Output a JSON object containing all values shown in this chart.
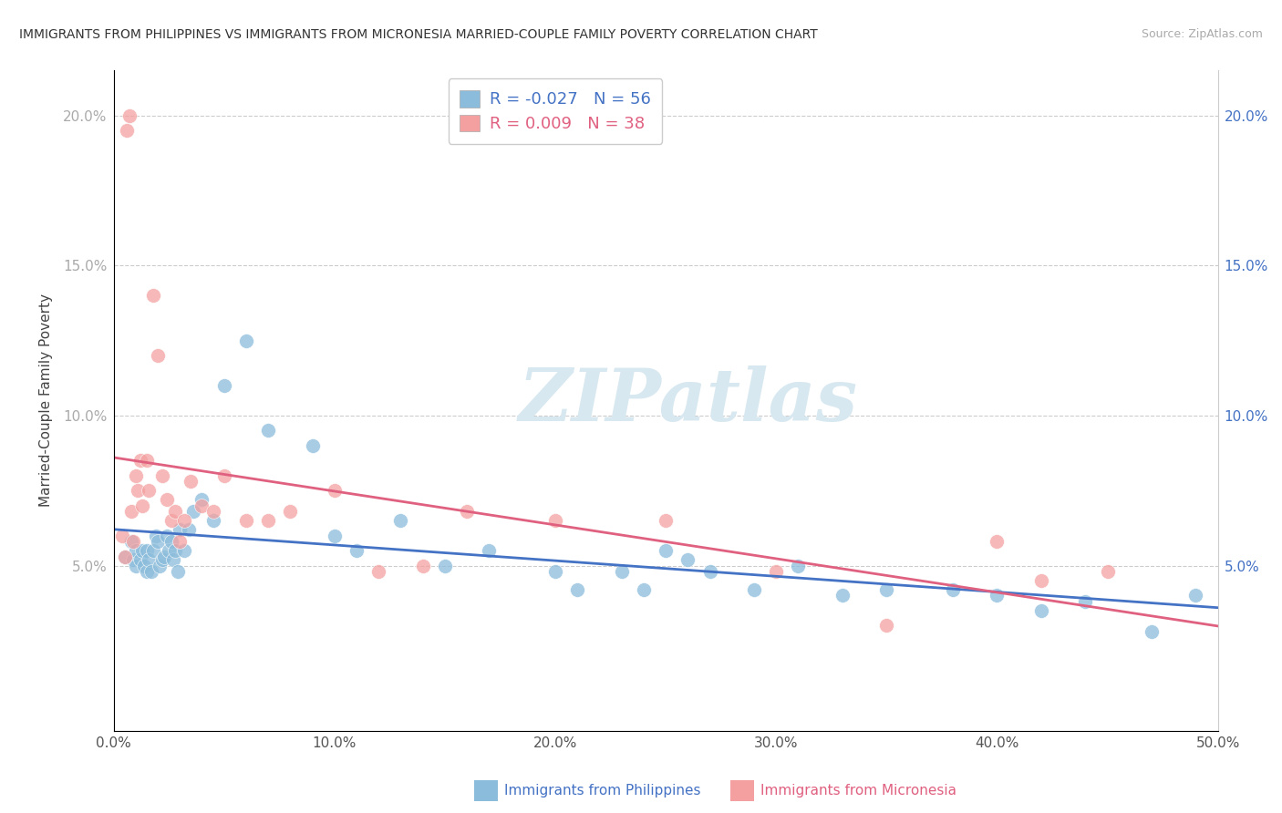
{
  "title": "IMMIGRANTS FROM PHILIPPINES VS IMMIGRANTS FROM MICRONESIA MARRIED-COUPLE FAMILY POVERTY CORRELATION CHART",
  "source": "Source: ZipAtlas.com",
  "ylabel": "Married-Couple Family Poverty",
  "xlabel_blue": "Immigrants from Philippines",
  "xlabel_pink": "Immigrants from Micronesia",
  "xlim": [
    0.0,
    0.5
  ],
  "ylim": [
    -0.005,
    0.215
  ],
  "xticks": [
    0.0,
    0.1,
    0.2,
    0.3,
    0.4,
    0.5
  ],
  "yticks": [
    0.05,
    0.1,
    0.15,
    0.2
  ],
  "ytick_labels": [
    "5.0%",
    "10.0%",
    "15.0%",
    "20.0%"
  ],
  "xtick_labels": [
    "0.0%",
    "10.0%",
    "20.0%",
    "30.0%",
    "40.0%",
    "50.0%"
  ],
  "legend_blue_R": "-0.027",
  "legend_blue_N": "56",
  "legend_pink_R": "0.009",
  "legend_pink_N": "38",
  "color_blue": "#8BBCDB",
  "color_pink": "#F4A0A0",
  "color_blue_line": "#4472C4",
  "color_pink_line": "#E06080",
  "watermark_color": "#d8e8f0",
  "blue_x": [
    0.005,
    0.008,
    0.009,
    0.01,
    0.01,
    0.012,
    0.013,
    0.014,
    0.015,
    0.015,
    0.016,
    0.017,
    0.018,
    0.019,
    0.02,
    0.021,
    0.022,
    0.023,
    0.024,
    0.025,
    0.026,
    0.027,
    0.028,
    0.029,
    0.03,
    0.032,
    0.034,
    0.036,
    0.04,
    0.045,
    0.05,
    0.06,
    0.07,
    0.09,
    0.1,
    0.11,
    0.13,
    0.15,
    0.17,
    0.2,
    0.21,
    0.23,
    0.24,
    0.25,
    0.26,
    0.27,
    0.29,
    0.31,
    0.33,
    0.35,
    0.38,
    0.4,
    0.42,
    0.44,
    0.47,
    0.49
  ],
  "blue_y": [
    0.053,
    0.058,
    0.052,
    0.05,
    0.055,
    0.052,
    0.055,
    0.05,
    0.048,
    0.055,
    0.052,
    0.048,
    0.055,
    0.06,
    0.058,
    0.05,
    0.052,
    0.053,
    0.06,
    0.055,
    0.058,
    0.052,
    0.055,
    0.048,
    0.062,
    0.055,
    0.062,
    0.068,
    0.072,
    0.065,
    0.11,
    0.125,
    0.095,
    0.09,
    0.06,
    0.055,
    0.065,
    0.05,
    0.055,
    0.048,
    0.042,
    0.048,
    0.042,
    0.055,
    0.052,
    0.048,
    0.042,
    0.05,
    0.04,
    0.042,
    0.042,
    0.04,
    0.035,
    0.038,
    0.028,
    0.04
  ],
  "pink_x": [
    0.004,
    0.005,
    0.006,
    0.007,
    0.008,
    0.009,
    0.01,
    0.011,
    0.012,
    0.013,
    0.015,
    0.016,
    0.018,
    0.02,
    0.022,
    0.024,
    0.026,
    0.028,
    0.03,
    0.032,
    0.035,
    0.04,
    0.045,
    0.05,
    0.06,
    0.07,
    0.08,
    0.1,
    0.12,
    0.14,
    0.16,
    0.2,
    0.25,
    0.3,
    0.35,
    0.4,
    0.42,
    0.45
  ],
  "pink_y": [
    0.06,
    0.053,
    0.195,
    0.2,
    0.068,
    0.058,
    0.08,
    0.075,
    0.085,
    0.07,
    0.085,
    0.075,
    0.14,
    0.12,
    0.08,
    0.072,
    0.065,
    0.068,
    0.058,
    0.065,
    0.078,
    0.07,
    0.068,
    0.08,
    0.065,
    0.065,
    0.068,
    0.075,
    0.048,
    0.05,
    0.068,
    0.065,
    0.065,
    0.048,
    0.03,
    0.058,
    0.045,
    0.048
  ]
}
